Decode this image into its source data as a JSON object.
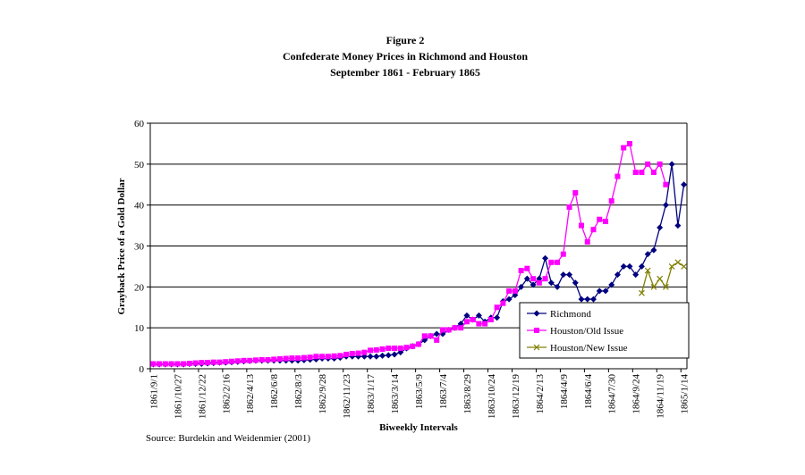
{
  "chart_data": {
    "type": "line",
    "title": "Figure 2",
    "subtitle": "Confederate Money Prices in Richmond and Houston",
    "subtitle2": "September 1861 - February 1865",
    "x_label": "Biweekly Intervals",
    "y_label": "Grayback Price of a Gold Dollar",
    "source": "Source: Burdekin and Weidenmier (2001)",
    "categories": [
      "1861/9/1",
      null,
      null,
      null,
      "1861/10/27",
      null,
      null,
      null,
      "1861/12/22",
      null,
      null,
      null,
      "1862/2/16",
      null,
      null,
      null,
      "1862/4/13",
      null,
      null,
      null,
      "1862/6/8",
      null,
      null,
      null,
      "1862/8/3",
      null,
      null,
      null,
      "1862/9/28",
      null,
      null,
      null,
      "1862/11/23",
      null,
      null,
      null,
      "1863/1/17",
      null,
      null,
      null,
      "1863/3/14",
      null,
      null,
      null,
      "1863/5/9",
      null,
      null,
      null,
      "1863/7/4",
      null,
      null,
      null,
      "1863/8/29",
      null,
      null,
      null,
      "1863/10/24",
      null,
      null,
      null,
      "1863/12/19",
      null,
      null,
      null,
      "1864/2/13",
      null,
      null,
      null,
      "1864/4/9",
      null,
      null,
      null,
      "1864/6/4",
      null,
      null,
      null,
      "1864/7/30",
      null,
      null,
      null,
      "1864/9/24",
      null,
      null,
      null,
      "1864/11/19",
      null,
      null,
      null,
      "1865/1/14"
    ],
    "series": [
      {
        "name": "Richmond",
        "color": "#000080",
        "marker": "diamond",
        "values": [
          1.1,
          1.1,
          1.1,
          1.1,
          1.1,
          1.1,
          1.2,
          1.2,
          1.2,
          1.3,
          1.4,
          1.5,
          1.5,
          1.6,
          1.7,
          1.8,
          1.9,
          2,
          2,
          2,
          2,
          2,
          2,
          2,
          2,
          2.1,
          2.2,
          2.3,
          2.5,
          2.5,
          2.5,
          2.7,
          3,
          3,
          3,
          3,
          3,
          3,
          3.2,
          3.3,
          3.5,
          4,
          5,
          5.5,
          6,
          7,
          8,
          8.5,
          8.5,
          9.5,
          10,
          11,
          13,
          12,
          13,
          11.5,
          12.5,
          12.5,
          16.5,
          17,
          18,
          20,
          22,
          20.5,
          22,
          27,
          21,
          20,
          23,
          23,
          21,
          17,
          17,
          17,
          19,
          19,
          20.5,
          23,
          25,
          25,
          23,
          25,
          28,
          29,
          34.5,
          40,
          50,
          35,
          45
        ]
      },
      {
        "name": "Houston/Old Issue",
        "color": "#ff00ff",
        "marker": "square",
        "values": [
          1.2,
          1.2,
          1.2,
          1.2,
          1.2,
          1.2,
          1.3,
          1.4,
          1.5,
          1.5,
          1.6,
          1.6,
          1.7,
          1.8,
          1.9,
          2,
          2,
          2.1,
          2.2,
          2.2,
          2.3,
          2.4,
          2.5,
          2.6,
          2.6,
          2.7,
          2.8,
          3,
          3,
          3,
          3.1,
          3.2,
          3.5,
          3.7,
          3.8,
          4,
          4.5,
          4.6,
          4.8,
          5,
          5,
          5,
          5.2,
          5.5,
          6,
          8,
          8,
          7,
          9.5,
          9.5,
          10,
          10,
          11.5,
          12,
          11,
          11,
          12,
          15,
          16,
          19,
          19,
          24,
          24.5,
          22,
          21,
          22,
          26,
          26,
          28,
          39.5,
          43,
          35,
          31,
          34,
          36.5,
          36,
          41,
          47,
          54,
          55,
          48,
          48,
          50,
          48,
          50,
          45,
          null,
          null,
          null
        ]
      },
      {
        "name": "Houston/New Issue",
        "color": "#808000",
        "marker": "x",
        "values": [
          null,
          null,
          null,
          null,
          null,
          null,
          null,
          null,
          null,
          null,
          null,
          null,
          null,
          null,
          null,
          null,
          null,
          null,
          null,
          null,
          null,
          null,
          null,
          null,
          null,
          null,
          null,
          null,
          null,
          null,
          null,
          null,
          null,
          null,
          null,
          null,
          null,
          null,
          null,
          null,
          null,
          null,
          null,
          null,
          null,
          null,
          null,
          null,
          null,
          null,
          null,
          null,
          null,
          null,
          null,
          null,
          null,
          null,
          null,
          null,
          null,
          null,
          null,
          null,
          null,
          null,
          null,
          null,
          null,
          null,
          null,
          null,
          null,
          null,
          null,
          null,
          null,
          null,
          null,
          null,
          null,
          18.5,
          24,
          20,
          22,
          20,
          25,
          26,
          25
        ]
      }
    ],
    "ylim": [
      0,
      60
    ],
    "yticks": [
      0,
      10,
      20,
      30,
      40,
      50,
      60
    ],
    "grid": true,
    "legend": "lower-right"
  }
}
